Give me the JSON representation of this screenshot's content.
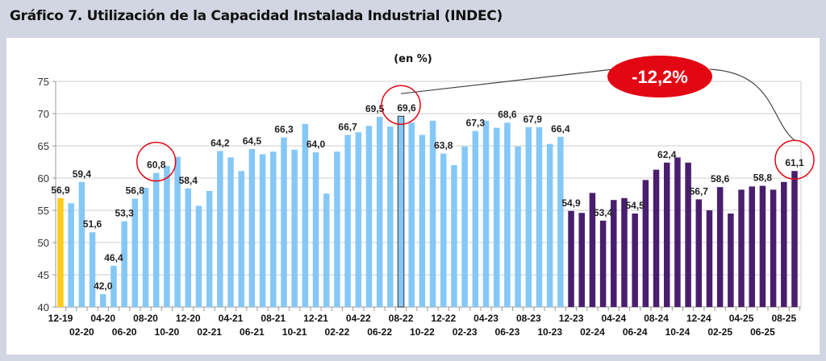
{
  "title": "Gráfico 7. Utilización de la Capacidad Instalada Industrial (INDEC)",
  "chart_data": {
    "type": "bar",
    "subtitle": "(en %)",
    "ylim": [
      40,
      75
    ],
    "yticks": [
      "40",
      "45",
      "50",
      "55",
      "60",
      "65",
      "70",
      "75"
    ],
    "grid": true,
    "categories": [
      "12-19",
      "01-20",
      "02-20",
      "03-20",
      "04-20",
      "05-20",
      "06-20",
      "07-20",
      "08-20",
      "09-20",
      "10-20",
      "11-20",
      "12-20",
      "01-21",
      "02-21",
      "03-21",
      "04-21",
      "05-21",
      "06-21",
      "07-21",
      "08-21",
      "09-21",
      "10-21",
      "11-21",
      "12-21",
      "01-22",
      "02-22",
      "03-22",
      "04-22",
      "05-22",
      "06-22",
      "07-22",
      "08-22",
      "09-22",
      "10-22",
      "11-22",
      "12-22",
      "01-23",
      "02-23",
      "03-23",
      "04-23",
      "05-23",
      "06-23",
      "07-23",
      "08-23",
      "09-23",
      "10-23",
      "11-23",
      "12-23",
      "01-24",
      "02-24",
      "03-24",
      "04-24",
      "05-24",
      "06-24",
      "07-24",
      "08-24",
      "09-24",
      "10-24",
      "11-24",
      "12-24",
      "01-25",
      "02-25",
      "03-25",
      "04-25",
      "05-25",
      "06-25",
      "07-25",
      "08-25",
      "09-25"
    ],
    "values": [
      56.9,
      56.1,
      59.4,
      51.6,
      42.0,
      46.4,
      53.3,
      56.8,
      58.5,
      60.8,
      61.9,
      63.3,
      58.4,
      55.7,
      58.0,
      64.2,
      63.2,
      61.1,
      64.5,
      63.7,
      64.1,
      66.3,
      64.4,
      68.4,
      64.0,
      57.6,
      64.1,
      66.7,
      67.1,
      68.1,
      69.5,
      68.0,
      69.6,
      68.6,
      66.7,
      68.9,
      63.8,
      62.0,
      64.9,
      67.3,
      68.9,
      67.8,
      68.6,
      64.9,
      67.9,
      67.9,
      65.3,
      66.4,
      54.9,
      54.6,
      57.7,
      53.4,
      56.6,
      56.9,
      54.5,
      59.7,
      61.3,
      62.4,
      63.2,
      62.4,
      56.7,
      55.0,
      58.6,
      54.5,
      58.2,
      58.7,
      58.8,
      58.2,
      59.4,
      61.1
    ],
    "data_labels": [
      {
        "i": 0,
        "text": "56,9"
      },
      {
        "i": 2,
        "text": "59,4"
      },
      {
        "i": 3,
        "text": "51,6"
      },
      {
        "i": 4,
        "text": "42,0"
      },
      {
        "i": 5,
        "text": "46,4"
      },
      {
        "i": 6,
        "text": "53,3"
      },
      {
        "i": 7,
        "text": "56,8"
      },
      {
        "i": 9,
        "text": "60,8"
      },
      {
        "i": 12,
        "text": "58,4"
      },
      {
        "i": 15,
        "text": "64,2"
      },
      {
        "i": 18,
        "text": "64,5"
      },
      {
        "i": 21,
        "text": "66,3"
      },
      {
        "i": 24,
        "text": "64,0"
      },
      {
        "i": 27,
        "text": "66,7"
      },
      {
        "i": 30,
        "text": "69,5"
      },
      {
        "i": 32,
        "text": "69,6"
      },
      {
        "i": 36,
        "text": "63,8"
      },
      {
        "i": 39,
        "text": "67,3"
      },
      {
        "i": 42,
        "text": "68,6"
      },
      {
        "i": 44,
        "text": "67,9"
      },
      {
        "i": 47,
        "text": "66,4"
      },
      {
        "i": 48,
        "text": "54,9"
      },
      {
        "i": 51,
        "text": "53,4"
      },
      {
        "i": 54,
        "text": "54,5"
      },
      {
        "i": 57,
        "text": "62,4"
      },
      {
        "i": 60,
        "text": "56,7"
      },
      {
        "i": 62,
        "text": "58,6"
      },
      {
        "i": 66,
        "text": "58,8"
      },
      {
        "i": 69,
        "text": "61,1"
      }
    ],
    "colors": {
      "first": "#ffcc1a",
      "period1": "#85c8f8",
      "period2": "#4a1e6e",
      "highlight_outline": "#333333",
      "annotation": "#e30613"
    },
    "annotation": {
      "text": "-12,2%",
      "from": "08-22",
      "to": "09-25"
    },
    "circled": [
      "09-20",
      "08-22",
      "09-25"
    ]
  }
}
